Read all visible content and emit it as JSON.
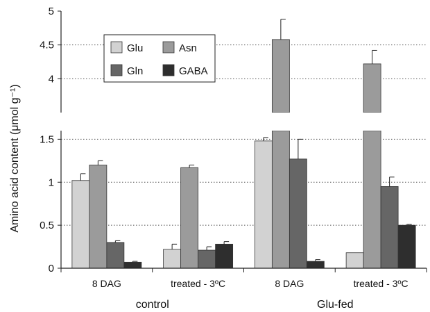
{
  "chart_data": {
    "type": "bar",
    "ylabel": "Amino acid content (μmol g⁻¹)",
    "axis_break": {
      "lower_range": [
        0,
        1.6
      ],
      "upper_range": [
        3.5,
        5
      ]
    },
    "lower_ticks": [
      "0",
      "0.5",
      "1",
      "1.5"
    ],
    "upper_ticks": [
      "4",
      "4.5",
      "5"
    ],
    "groups": [
      {
        "label": "control",
        "categories": [
          "8 DAG",
          "treated - 3ºC"
        ]
      },
      {
        "label": "Glu-fed",
        "categories": [
          "8 DAG",
          "treated - 3ºC"
        ]
      }
    ],
    "categories": [
      "8 DAG",
      "treated - 3ºC",
      "8 DAG",
      "treated - 3ºC"
    ],
    "series": [
      {
        "name": "Glu",
        "color": "#d2d2d2",
        "values": [
          1.02,
          0.22,
          1.48,
          0.18
        ],
        "errors": [
          0.08,
          0.06,
          0.04,
          0
        ]
      },
      {
        "name": "Asn",
        "color": "#9b9b9b",
        "values": [
          1.2,
          1.17,
          4.58,
          4.22
        ],
        "errors": [
          0.05,
          0.03,
          0.3,
          0.2
        ]
      },
      {
        "name": "Gln",
        "color": "#666666",
        "values": [
          0.3,
          0.21,
          1.27,
          0.95
        ],
        "errors": [
          0.02,
          0.04,
          0.23,
          0.11
        ]
      },
      {
        "name": "GABA",
        "color": "#2e2e2e",
        "values": [
          0.07,
          0.28,
          0.08,
          0.5
        ],
        "errors": [
          0.01,
          0.03,
          0.02,
          0.01
        ]
      }
    ],
    "legend": {
      "position": "top-left",
      "columns": 2
    },
    "grid": {
      "y": "dotted"
    }
  }
}
